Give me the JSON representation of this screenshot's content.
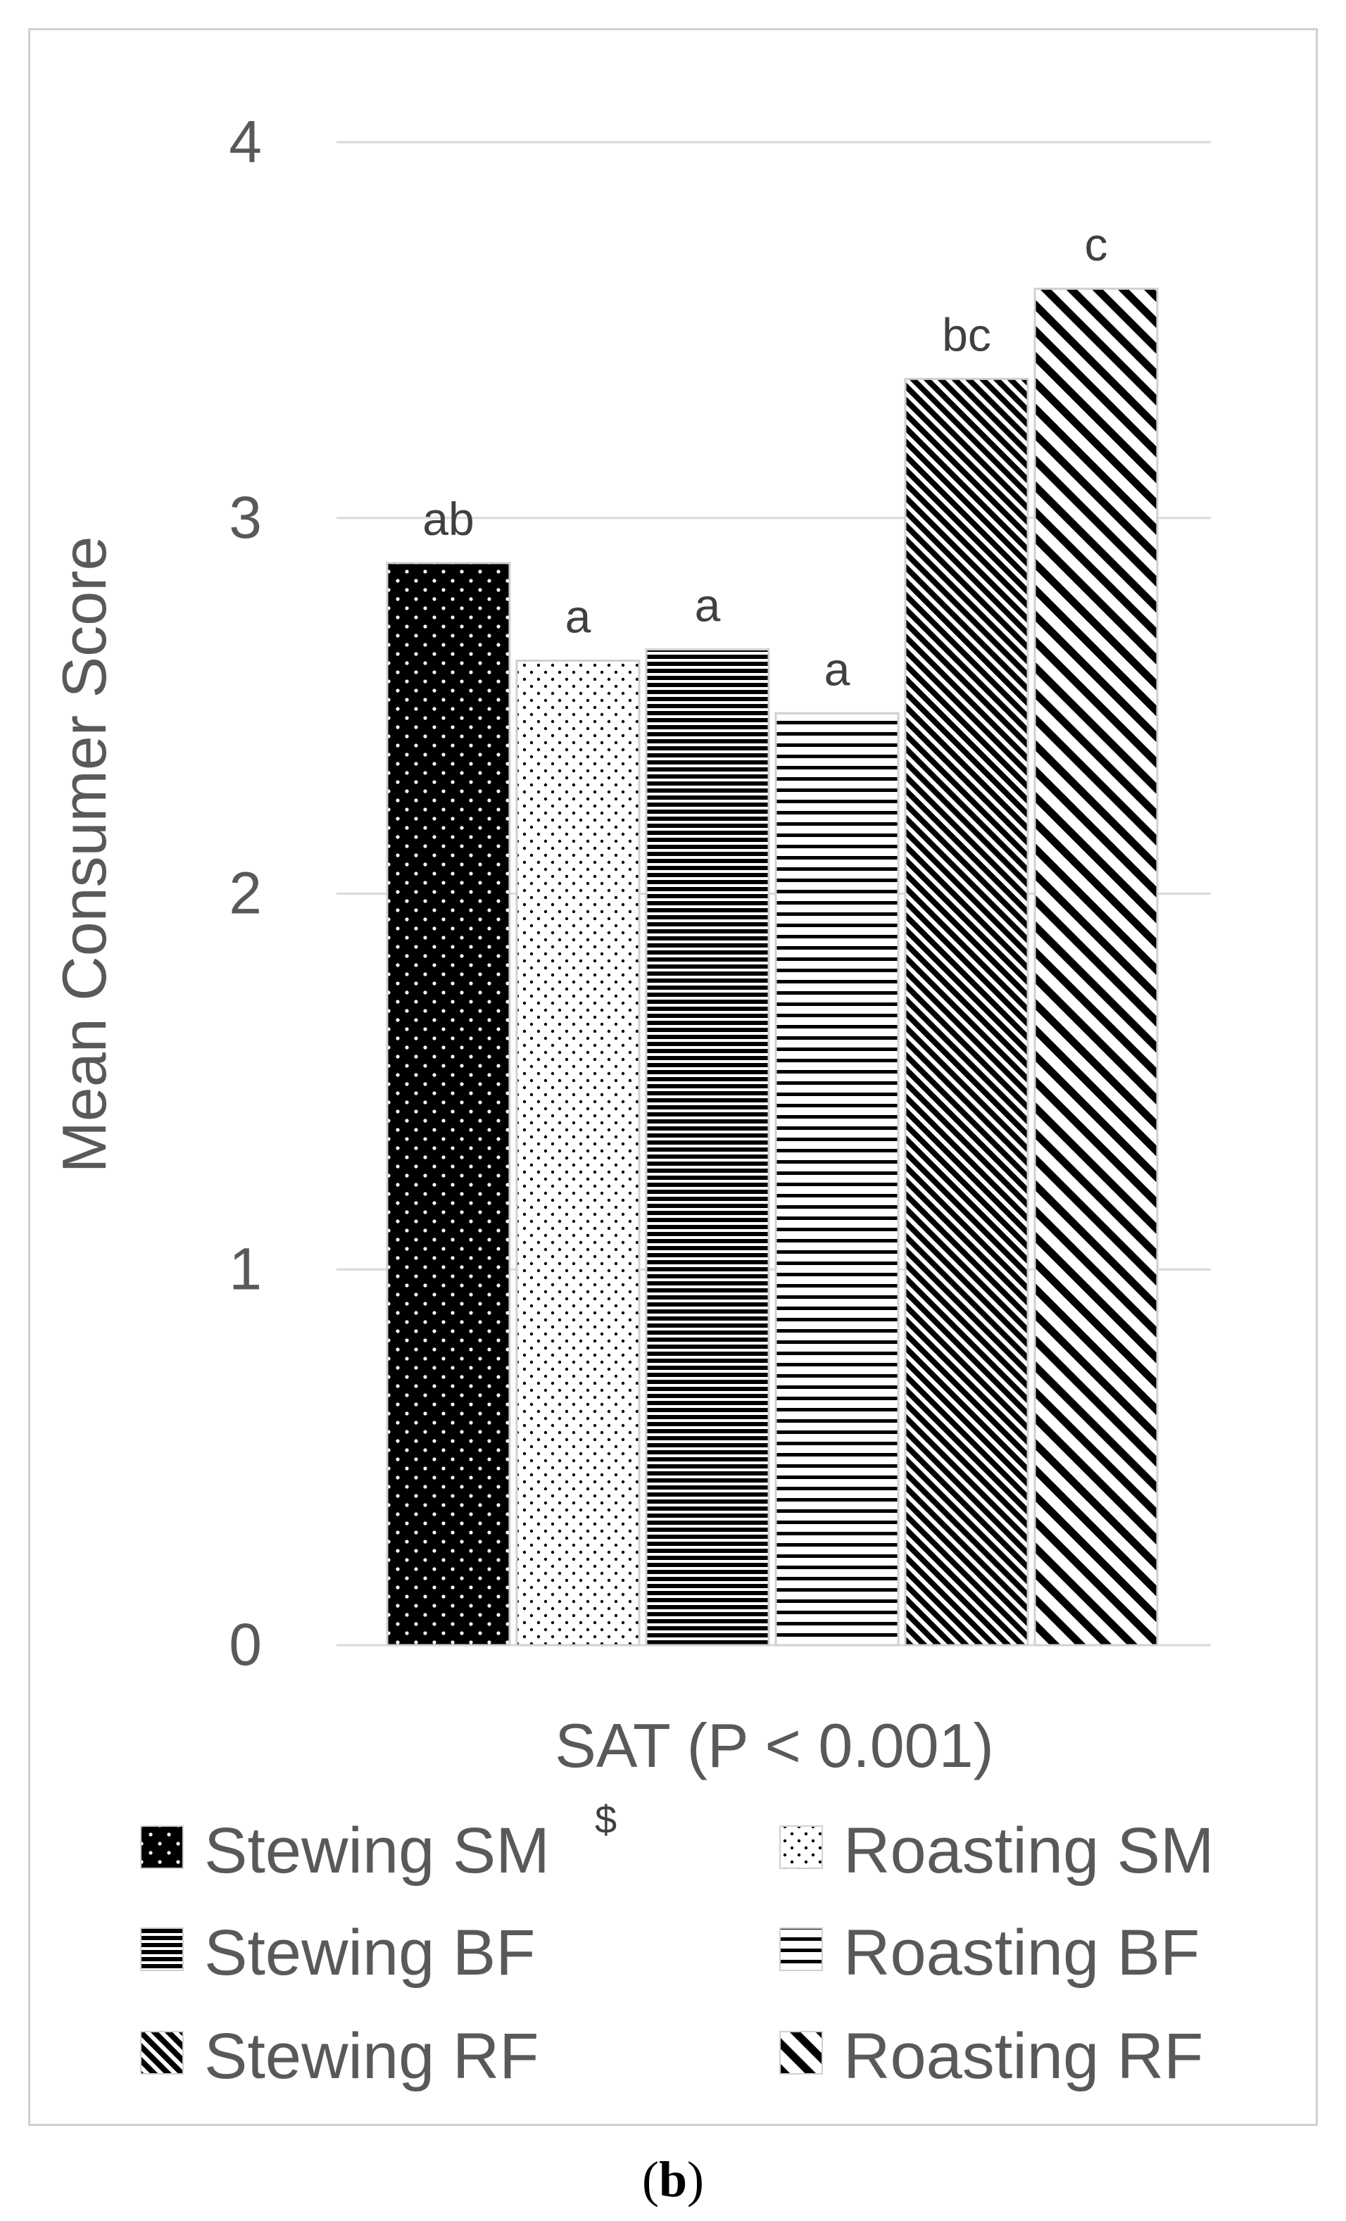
{
  "chart_data": {
    "type": "bar",
    "title": "",
    "xlabel": "SAT (P < 0.001)",
    "ylabel": "Mean Consumer Score",
    "ylim": [
      0,
      4
    ],
    "yticks": [
      "0",
      "1",
      "2",
      "3",
      "4"
    ],
    "grid": true,
    "legend_position": "bottom",
    "categories": [
      "Stewing SM",
      "Roasting SM",
      "Stewing BF",
      "Roasting BF",
      "Stewing RF",
      "Roasting RF"
    ],
    "values": [
      2.88,
      2.62,
      2.65,
      2.48,
      3.37,
      3.61
    ],
    "significance_labels": [
      "ab",
      "a",
      "a",
      "a",
      "bc",
      "c"
    ],
    "legend": [
      {
        "label": "Stewing SM",
        "superscript": "$",
        "pattern": "dots-on-black"
      },
      {
        "label": "Roasting SM",
        "superscript": "",
        "pattern": "sparse-dots"
      },
      {
        "label": "Stewing BF",
        "superscript": "",
        "pattern": "dense-horizontal"
      },
      {
        "label": "Roasting BF",
        "superscript": "",
        "pattern": "horizontal"
      },
      {
        "label": "Stewing RF",
        "superscript": "",
        "pattern": "dense-diagonal"
      },
      {
        "label": "Roasting RF",
        "superscript": "",
        "pattern": "wide-diagonal"
      }
    ]
  },
  "panel_label": {
    "open": "(",
    "letter": "b",
    "close": ")"
  }
}
